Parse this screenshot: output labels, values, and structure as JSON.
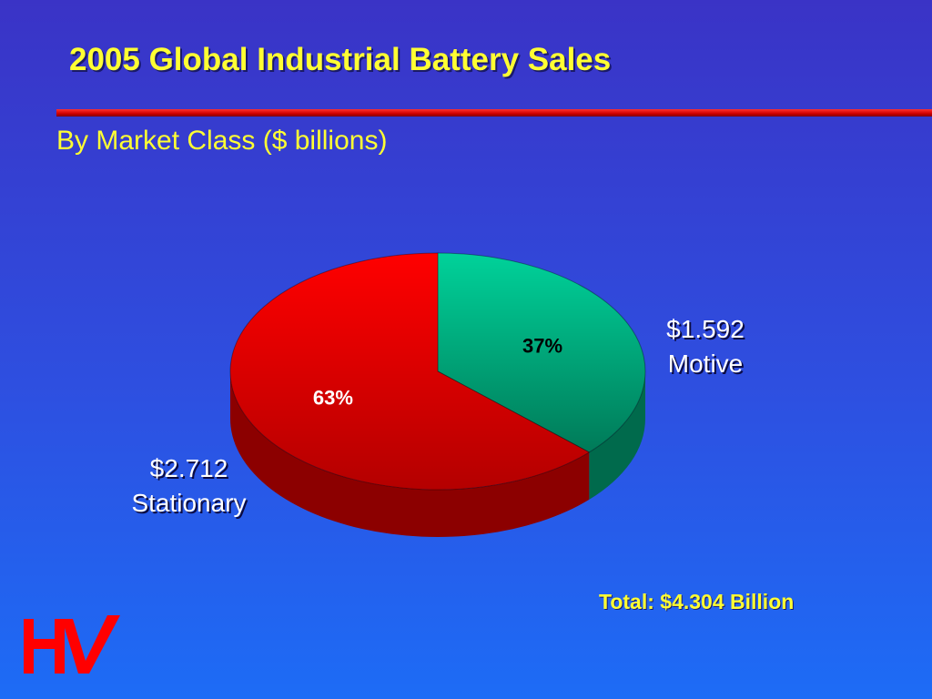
{
  "slide": {
    "title": "2005 Global Industrial Battery Sales",
    "subtitle": "By Market Class ($ billions)",
    "total": "Total: $4.304 Billion"
  },
  "chart_data": {
    "type": "pie",
    "title": "2005 Global Industrial Battery Sales",
    "subtitle": "By Market Class ($ billions)",
    "slices": [
      {
        "name": "Motive",
        "value": 1.592,
        "value_label": "$1.592",
        "percent": 37,
        "percent_label": "37%",
        "color": "#00c896"
      },
      {
        "name": "Stationary",
        "value": 2.712,
        "value_label": "$2.712",
        "percent": 63,
        "percent_label": "63%",
        "color": "#ff0000"
      }
    ],
    "total": 4.304,
    "style": "3d-pie",
    "legend": "none"
  },
  "colors": {
    "background_top": "#3a33c6",
    "background_bottom": "#1d6cf6",
    "title_text": "#ffff33",
    "rule": "#e00000"
  },
  "logo": {
    "text": "HV",
    "color": "#ff0000"
  }
}
